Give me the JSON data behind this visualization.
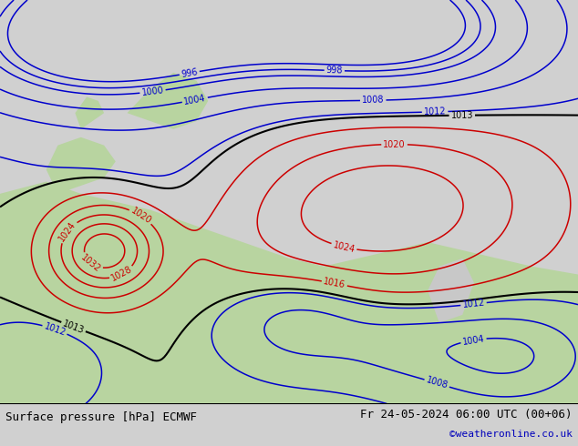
{
  "title_left": "Surface pressure [hPa] ECMWF",
  "title_right": "Fr 24-05-2024 06:00 UTC (00+06)",
  "watermark": "©weatheronline.co.uk",
  "sea_color": "#c8c8c8",
  "land_color": "#b8d4a0",
  "blue_contour_color": "#0000cc",
  "red_contour_color": "#cc0000",
  "black_contour_color": "#000000",
  "label_fontsize": 7,
  "footer_fontsize": 9,
  "watermark_color": "#0000bb",
  "fig_width": 6.34,
  "fig_height": 4.9,
  "dpi": 100,
  "footer_bg": "#d0d0d0",
  "blue_levels": [
    996,
    998,
    1000,
    1004,
    1008,
    1012
  ],
  "red_levels": [
    1016,
    1020,
    1024,
    1028,
    1032
  ],
  "black_levels": [
    1013
  ]
}
